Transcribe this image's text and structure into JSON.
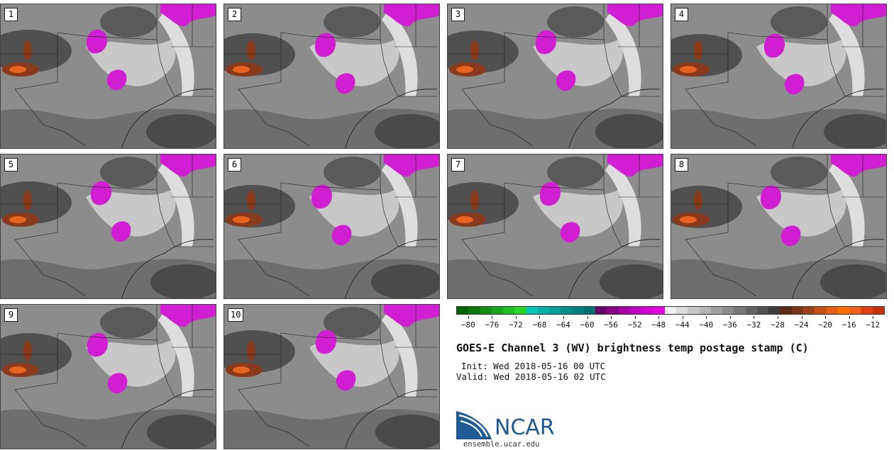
{
  "panels": [
    {
      "label": "1"
    },
    {
      "label": "2"
    },
    {
      "label": "3"
    },
    {
      "label": "4"
    },
    {
      "label": "5"
    },
    {
      "label": "6"
    },
    {
      "label": "7"
    },
    {
      "label": "8"
    },
    {
      "label": "9"
    },
    {
      "label": "10"
    }
  ],
  "colorbar": {
    "segments": [
      "#006400",
      "#0a7a0a",
      "#129012",
      "#18a818",
      "#1ec01e",
      "#26d826",
      "#00c8b4",
      "#00b0a8",
      "#00a09a",
      "#00908c",
      "#00807e",
      "#007070",
      "#6a006a",
      "#8a008a",
      "#a600a6",
      "#c000c0",
      "#d400d4",
      "#e800e8",
      "#f0f0f0",
      "#dcdcdc",
      "#c8c8c8",
      "#b4b4b4",
      "#a0a0a0",
      "#8c8c8c",
      "#787878",
      "#646464",
      "#505050",
      "#3c3c3c",
      "#5a2a14",
      "#7a3414",
      "#a04018",
      "#c85010",
      "#e86010",
      "#ff7000",
      "#f06018",
      "#e04010",
      "#c83008"
    ],
    "ticks": [
      "−80",
      "−76",
      "−72",
      "−68",
      "−64",
      "−60",
      "−56",
      "−52",
      "−48",
      "−44",
      "−40",
      "−36",
      "−32",
      "−28",
      "−24",
      "−20",
      "−16",
      "−12"
    ],
    "tick_values": [
      -80,
      -76,
      -72,
      -68,
      -64,
      -60,
      -56,
      -52,
      -48,
      -44,
      -40,
      -36,
      -32,
      -28,
      -24,
      -20,
      -16,
      -12
    ],
    "range": [
      -82,
      -10
    ]
  },
  "title": "GOES-E Channel 3 (WV) brightness temp postage stamp (C)",
  "init": "Init: Wed 2018-05-16 00 UTC",
  "valid": "Valid: Wed 2018-05-16 02 UTC",
  "logo": {
    "name": "NCAR",
    "url": "ensemble.ucar.edu"
  },
  "colors": {
    "magenta": "#d21ed2",
    "brown": "#8a3a1a",
    "orange": "#e6641e",
    "dark": "#3c3c3c",
    "light": "#d8d8d8",
    "border": "#1a1a1a"
  }
}
